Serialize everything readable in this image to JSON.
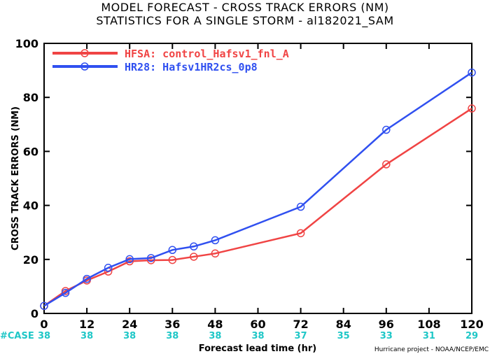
{
  "title_line1": "MODEL FORECAST - CROSS TRACK ERRORS (NM)",
  "title_line2": "STATISTICS FOR A SINGLE STORM - al182021_SAM",
  "credit": "Hurricane project - NOAA/NCEP/EMC",
  "case_label": "#CASE",
  "colors": {
    "hfsa": "#f04444",
    "hr28": "#3050f0",
    "case": "#1fc7c7"
  },
  "chart_data": {
    "type": "line",
    "title": "MODEL FORECAST - CROSS TRACK ERRORS (NM)",
    "subtitle": "STATISTICS FOR A SINGLE STORM - al182021_SAM",
    "xlabel": "Forecast lead time (hr)",
    "ylabel": "CROSS TRACK ERRORS (NM)",
    "xlim": [
      0,
      120
    ],
    "ylim": [
      0,
      100
    ],
    "xticks": [
      0,
      12,
      24,
      36,
      48,
      60,
      72,
      84,
      96,
      108,
      120
    ],
    "yticks": [
      0,
      20,
      40,
      60,
      80,
      100
    ],
    "grid": false,
    "legend_position": "top-left",
    "cases": [
      38,
      38,
      38,
      38,
      38,
      38,
      37,
      35,
      33,
      31,
      29
    ],
    "series": [
      {
        "name": "HFSA: control_Hafsv1_fnl_A",
        "x": [
          0,
          6,
          12,
          18,
          24,
          30,
          36,
          42,
          48,
          72,
          96,
          120
        ],
        "y": [
          2.8,
          8.3,
          12.2,
          15.5,
          19.3,
          19.7,
          19.8,
          21.0,
          22.2,
          29.7,
          55.2,
          75.9
        ]
      },
      {
        "name": "HR28: Hafsv1HR2cs_0p8",
        "x": [
          0,
          6,
          12,
          18,
          24,
          30,
          36,
          42,
          48,
          72,
          96,
          120
        ],
        "y": [
          2.8,
          7.6,
          12.8,
          16.9,
          20.1,
          20.5,
          23.5,
          24.8,
          27.1,
          39.5,
          68.0,
          89.2
        ]
      }
    ]
  }
}
